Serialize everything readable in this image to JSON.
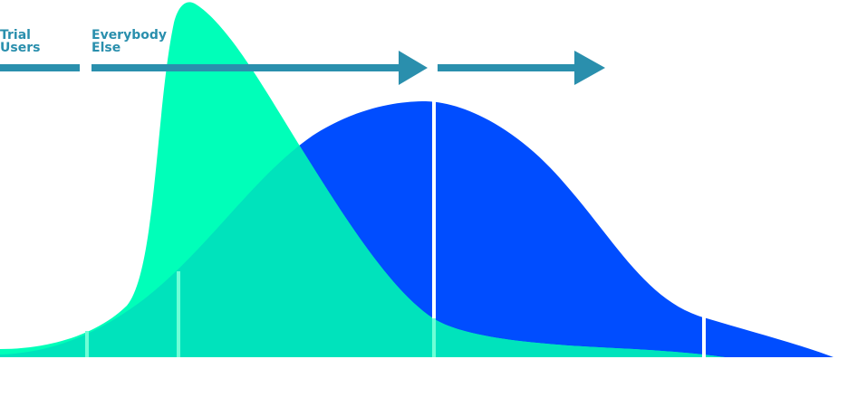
{
  "labels": {
    "trial_line1": "Trial",
    "trial_line2": "Users",
    "everybody_line1": "Everybody",
    "everybody_line2": "Else"
  },
  "colors": {
    "arrow": "#2a8fad",
    "label": "#2a8fad",
    "blue_curve": "#004dff",
    "green_curve": "#00ffb9",
    "overlap": "#00e3bc",
    "divider": "#ffffff",
    "background": "#ffffff"
  }
}
